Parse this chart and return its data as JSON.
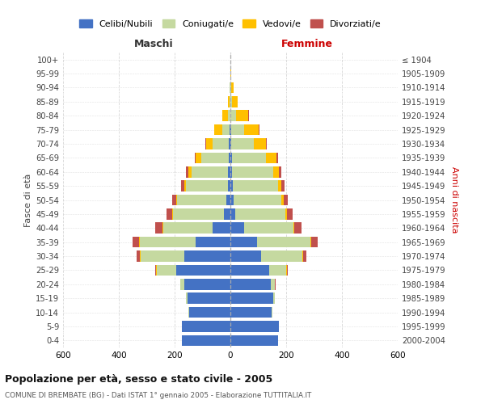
{
  "age_groups_bottom_to_top": [
    "0-4",
    "5-9",
    "10-14",
    "15-19",
    "20-24",
    "25-29",
    "30-34",
    "35-39",
    "40-44",
    "45-49",
    "50-54",
    "55-59",
    "60-64",
    "65-69",
    "70-74",
    "75-79",
    "80-84",
    "85-89",
    "90-94",
    "95-99",
    "100+"
  ],
  "birth_years_bottom_to_top": [
    "2000-2004",
    "1995-1999",
    "1990-1994",
    "1985-1989",
    "1980-1984",
    "1975-1979",
    "1970-1974",
    "1965-1969",
    "1960-1964",
    "1955-1959",
    "1950-1954",
    "1945-1949",
    "1940-1944",
    "1935-1939",
    "1930-1934",
    "1925-1929",
    "1920-1924",
    "1915-1919",
    "1910-1914",
    "1905-1909",
    "≤ 1904"
  ],
  "maschi_celibe": [
    175,
    175,
    148,
    155,
    165,
    195,
    165,
    125,
    65,
    22,
    15,
    8,
    8,
    6,
    5,
    2,
    0,
    0,
    0,
    0,
    0
  ],
  "maschi_coniugato": [
    0,
    0,
    2,
    3,
    14,
    70,
    158,
    200,
    175,
    185,
    175,
    152,
    132,
    98,
    58,
    28,
    10,
    4,
    2,
    0,
    0
  ],
  "maschi_vedovo": [
    0,
    0,
    0,
    0,
    0,
    1,
    2,
    3,
    3,
    3,
    4,
    6,
    12,
    20,
    25,
    28,
    18,
    4,
    1,
    0,
    0
  ],
  "maschi_divorziato": [
    0,
    0,
    0,
    1,
    2,
    5,
    12,
    22,
    28,
    20,
    15,
    10,
    7,
    4,
    2,
    1,
    0,
    0,
    0,
    0,
    0
  ],
  "femmine_celibe": [
    170,
    175,
    148,
    155,
    145,
    140,
    110,
    95,
    50,
    18,
    12,
    8,
    7,
    5,
    3,
    2,
    0,
    0,
    0,
    0,
    0
  ],
  "femmine_coniugata": [
    0,
    0,
    2,
    3,
    14,
    60,
    148,
    192,
    175,
    178,
    172,
    162,
    148,
    122,
    82,
    48,
    20,
    6,
    3,
    1,
    0
  ],
  "femmine_vedova": [
    0,
    0,
    0,
    0,
    1,
    2,
    2,
    3,
    4,
    6,
    8,
    12,
    20,
    38,
    42,
    52,
    45,
    20,
    8,
    1,
    0
  ],
  "femmine_divorziata": [
    0,
    0,
    0,
    1,
    2,
    5,
    12,
    22,
    25,
    20,
    15,
    12,
    8,
    5,
    3,
    2,
    1,
    0,
    0,
    0,
    0
  ],
  "colors": {
    "celibe": "#4472c4",
    "coniugato": "#c5d9a0",
    "vedovo": "#ffc000",
    "divorziato": "#c0504d"
  },
  "title": "Popolazione per età, sesso e stato civile - 2005",
  "subtitle": "COMUNE DI BREMBATE (BG) - Dati ISTAT 1° gennaio 2005 - Elaborazione TUTTITALIA.IT",
  "xlabel_left": "Maschi",
  "xlabel_right": "Femmine",
  "ylabel_left": "Fasce di età",
  "ylabel_right": "Anni di nascita",
  "xlim": 600,
  "legend_labels": [
    "Celibi/Nubili",
    "Coniugati/e",
    "Vedovi/e",
    "Divorziati/e"
  ],
  "bg_color": "#ffffff",
  "grid_color": "#cccccc"
}
